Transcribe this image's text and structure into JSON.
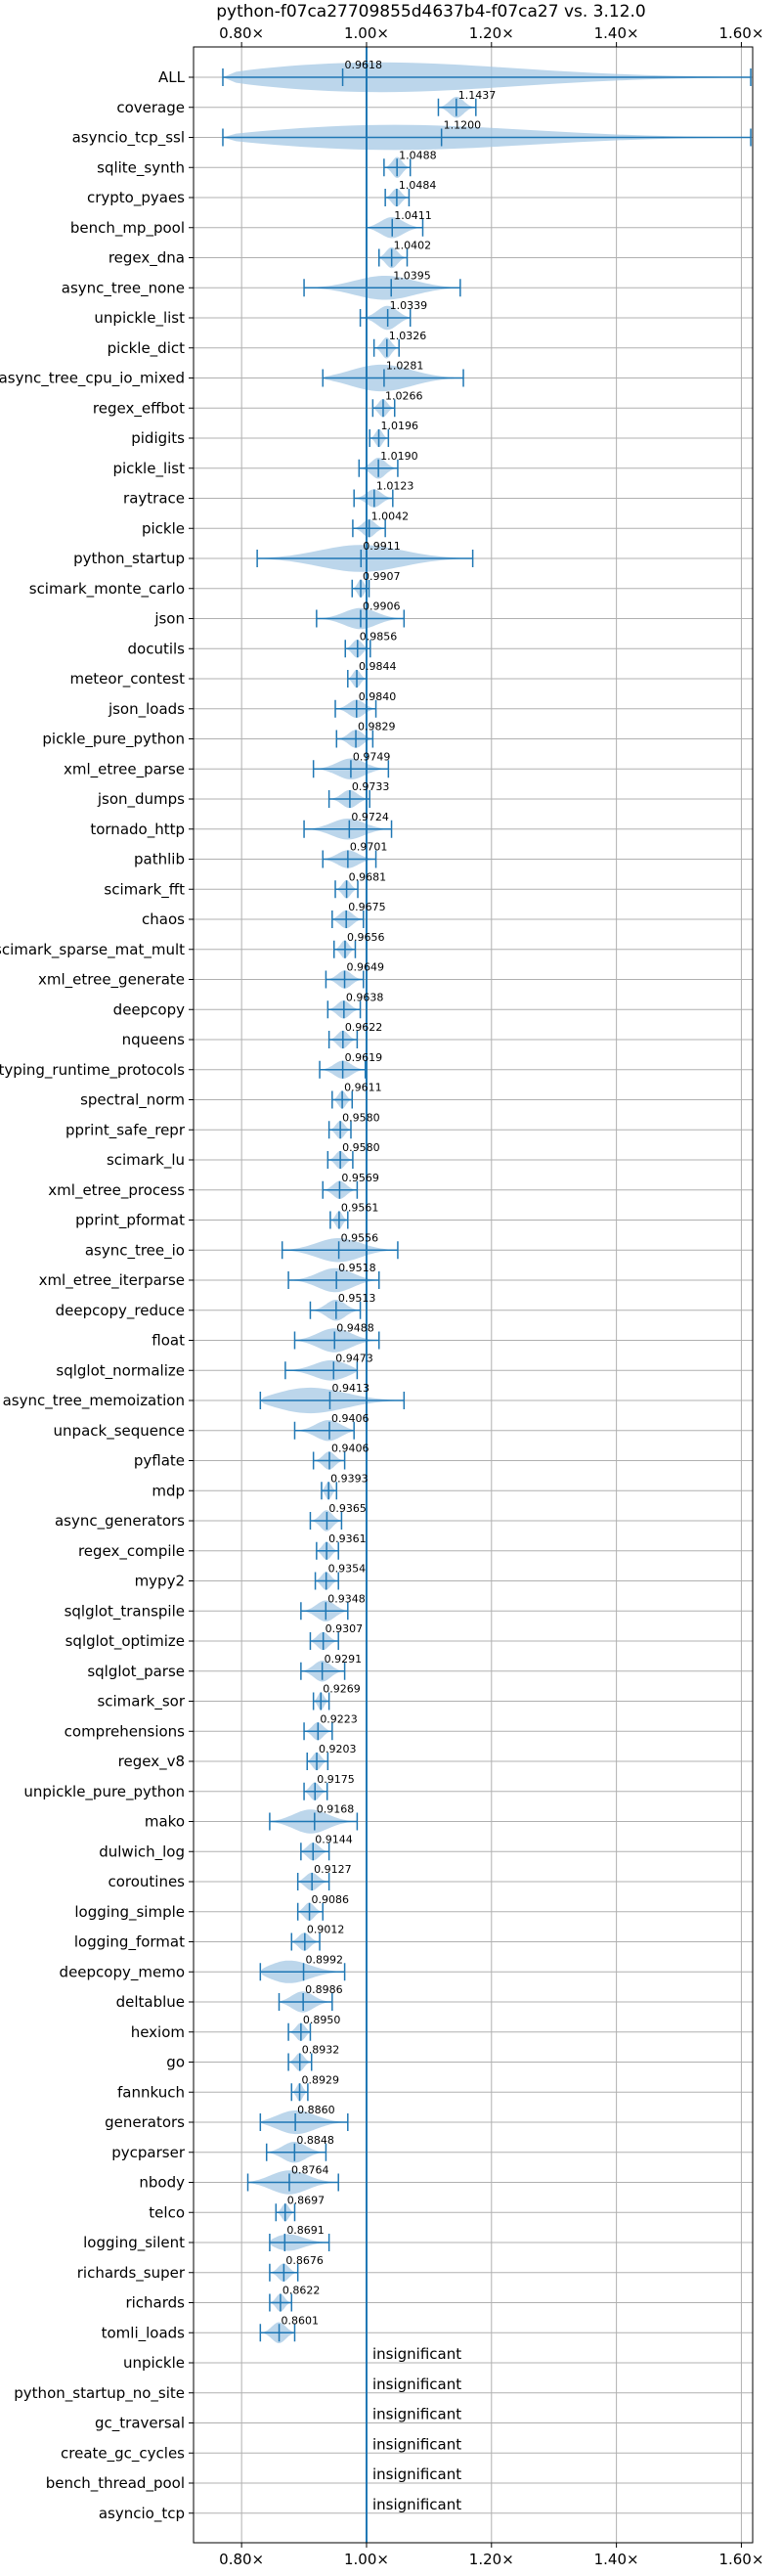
{
  "chart_data": {
    "type": "violin",
    "title": "python-f07ca27709855d4637b4-f07ca27 vs. 3.12.0",
    "xlabel": "",
    "ylabel": "",
    "xlim": [
      0.745,
      1.64
    ],
    "x_ticks": [
      {
        "value": 0.8,
        "label": "0.80×"
      },
      {
        "value": 1.0,
        "label": "1.00×"
      },
      {
        "value": 1.2,
        "label": "1.20×"
      },
      {
        "value": 1.4,
        "label": "1.40×"
      },
      {
        "value": 1.6,
        "label": "1.60×"
      }
    ],
    "reference_line": 1.0,
    "grid": true,
    "colors": {
      "violin": "#a6c8e4",
      "line": "#1f77b4",
      "grid": "#b0b0b0"
    },
    "benchmarks": [
      {
        "name": "ALL",
        "value": 0.9618,
        "label": "0.9618",
        "min": 0.77,
        "max": 1.615,
        "half_width": 0.55,
        "peak": 0.958
      },
      {
        "name": "coverage",
        "value": 1.1437,
        "label": "1.1437",
        "min": 1.115,
        "max": 1.175,
        "half_width": 0.35,
        "peak": 1.144
      },
      {
        "name": "asyncio_tcp_ssl",
        "value": 1.12,
        "label": "1.1200",
        "min": 0.77,
        "max": 1.615,
        "half_width": 0.45,
        "peak": 1.0
      },
      {
        "name": "sqlite_synth",
        "value": 1.0488,
        "label": "1.0488",
        "min": 1.028,
        "max": 1.07,
        "half_width": 0.35,
        "peak": 1.049
      },
      {
        "name": "crypto_pyaes",
        "value": 1.0484,
        "label": "1.0484",
        "min": 1.03,
        "max": 1.068,
        "half_width": 0.3,
        "peak": 1.048
      },
      {
        "name": "bench_mp_pool",
        "value": 1.0411,
        "label": "1.0411",
        "min": 1.0,
        "max": 1.09,
        "half_width": 0.35,
        "peak": 1.04
      },
      {
        "name": "regex_dna",
        "value": 1.0402,
        "label": "1.0402",
        "min": 1.02,
        "max": 1.065,
        "half_width": 0.35,
        "peak": 1.04
      },
      {
        "name": "async_tree_none",
        "value": 1.0395,
        "label": "1.0395",
        "min": 0.9,
        "max": 1.15,
        "half_width": 0.4,
        "peak": 1.03
      },
      {
        "name": "unpickle_list",
        "value": 1.0339,
        "label": "1.0339",
        "min": 0.99,
        "max": 1.07,
        "half_width": 0.4,
        "peak": 1.034
      },
      {
        "name": "pickle_dict",
        "value": 1.0326,
        "label": "1.0326",
        "min": 1.012,
        "max": 1.052,
        "half_width": 0.35,
        "peak": 1.032
      },
      {
        "name": "async_tree_cpu_io_mixed",
        "value": 1.0281,
        "label": "1.0281",
        "min": 0.93,
        "max": 1.155,
        "half_width": 0.45,
        "peak": 1.02
      },
      {
        "name": "regex_effbot",
        "value": 1.0266,
        "label": "1.0266",
        "min": 1.01,
        "max": 1.045,
        "half_width": 0.3,
        "peak": 1.026
      },
      {
        "name": "pidigits",
        "value": 1.0196,
        "label": "1.0196",
        "min": 1.005,
        "max": 1.035,
        "half_width": 0.3,
        "peak": 1.02
      },
      {
        "name": "pickle_list",
        "value": 1.019,
        "label": "1.0190",
        "min": 0.988,
        "max": 1.05,
        "half_width": 0.35,
        "peak": 1.019
      },
      {
        "name": "raytrace",
        "value": 1.0123,
        "label": "1.0123",
        "min": 0.98,
        "max": 1.042,
        "half_width": 0.3,
        "peak": 1.012
      },
      {
        "name": "pickle",
        "value": 1.0042,
        "label": "1.0042",
        "min": 0.978,
        "max": 1.03,
        "half_width": 0.3,
        "peak": 1.004
      },
      {
        "name": "python_startup",
        "value": 0.9911,
        "label": "0.9911",
        "min": 0.825,
        "max": 1.17,
        "half_width": 0.45,
        "peak": 0.99
      },
      {
        "name": "scimark_monte_carlo",
        "value": 0.9907,
        "label": "0.9907",
        "min": 0.977,
        "max": 1.004,
        "half_width": 0.3,
        "peak": 0.991
      },
      {
        "name": "json",
        "value": 0.9906,
        "label": "0.9906",
        "min": 0.92,
        "max": 1.06,
        "half_width": 0.35,
        "peak": 0.99
      },
      {
        "name": "docutils",
        "value": 0.9856,
        "label": "0.9856",
        "min": 0.966,
        "max": 1.006,
        "half_width": 0.3,
        "peak": 0.985
      },
      {
        "name": "meteor_contest",
        "value": 0.9844,
        "label": "0.9844",
        "min": 0.97,
        "max": 1.0,
        "half_width": 0.3,
        "peak": 0.984
      },
      {
        "name": "json_loads",
        "value": 0.984,
        "label": "0.9840",
        "min": 0.95,
        "max": 1.015,
        "half_width": 0.3,
        "peak": 0.984
      },
      {
        "name": "pickle_pure_python",
        "value": 0.9829,
        "label": "0.9829",
        "min": 0.952,
        "max": 1.01,
        "half_width": 0.3,
        "peak": 0.983
      },
      {
        "name": "xml_etree_parse",
        "value": 0.9749,
        "label": "0.9749",
        "min": 0.915,
        "max": 1.035,
        "half_width": 0.35,
        "peak": 0.975
      },
      {
        "name": "json_dumps",
        "value": 0.9733,
        "label": "0.9733",
        "min": 0.94,
        "max": 1.005,
        "half_width": 0.3,
        "peak": 0.973
      },
      {
        "name": "tornado_http",
        "value": 0.9724,
        "label": "0.9724",
        "min": 0.9,
        "max": 1.04,
        "half_width": 0.35,
        "peak": 0.97
      },
      {
        "name": "pathlib",
        "value": 0.9701,
        "label": "0.9701",
        "min": 0.93,
        "max": 1.015,
        "half_width": 0.3,
        "peak": 0.97
      },
      {
        "name": "scimark_fft",
        "value": 0.9681,
        "label": "0.9681",
        "min": 0.95,
        "max": 0.986,
        "half_width": 0.3,
        "peak": 0.968
      },
      {
        "name": "chaos",
        "value": 0.9675,
        "label": "0.9675",
        "min": 0.945,
        "max": 0.995,
        "half_width": 0.3,
        "peak": 0.967
      },
      {
        "name": "scimark_sparse_mat_mult",
        "value": 0.9656,
        "label": "0.9656",
        "min": 0.948,
        "max": 0.982,
        "half_width": 0.3,
        "peak": 0.965
      },
      {
        "name": "xml_etree_generate",
        "value": 0.9649,
        "label": "0.9649",
        "min": 0.935,
        "max": 0.995,
        "half_width": 0.3,
        "peak": 0.965
      },
      {
        "name": "deepcopy",
        "value": 0.9638,
        "label": "0.9638",
        "min": 0.938,
        "max": 0.99,
        "half_width": 0.3,
        "peak": 0.963
      },
      {
        "name": "nqueens",
        "value": 0.9622,
        "label": "0.9622",
        "min": 0.94,
        "max": 0.985,
        "half_width": 0.3,
        "peak": 0.962
      },
      {
        "name": "typing_runtime_protocols",
        "value": 0.9619,
        "label": "0.9619",
        "min": 0.925,
        "max": 0.998,
        "half_width": 0.3,
        "peak": 0.962
      },
      {
        "name": "spectral_norm",
        "value": 0.9611,
        "label": "0.9611",
        "min": 0.945,
        "max": 0.977,
        "half_width": 0.3,
        "peak": 0.961
      },
      {
        "name": "pprint_safe_repr",
        "value": 0.958,
        "label": "0.9580",
        "min": 0.94,
        "max": 0.975,
        "half_width": 0.3,
        "peak": 0.958
      },
      {
        "name": "scimark_lu",
        "value": 0.958,
        "label": "0.9580",
        "min": 0.938,
        "max": 0.978,
        "half_width": 0.3,
        "peak": 0.958
      },
      {
        "name": "xml_etree_process",
        "value": 0.9569,
        "label": "0.9569",
        "min": 0.93,
        "max": 0.985,
        "half_width": 0.3,
        "peak": 0.957
      },
      {
        "name": "pprint_pformat",
        "value": 0.9561,
        "label": "0.9561",
        "min": 0.942,
        "max": 0.97,
        "half_width": 0.3,
        "peak": 0.956
      },
      {
        "name": "async_tree_io",
        "value": 0.9556,
        "label": "0.9556",
        "min": 0.865,
        "max": 1.05,
        "half_width": 0.4,
        "peak": 0.955
      },
      {
        "name": "xml_etree_iterparse",
        "value": 0.9518,
        "label": "0.9518",
        "min": 0.875,
        "max": 1.02,
        "half_width": 0.4,
        "peak": 0.95
      },
      {
        "name": "deepcopy_reduce",
        "value": 0.9513,
        "label": "0.9513",
        "min": 0.91,
        "max": 0.99,
        "half_width": 0.35,
        "peak": 0.951
      },
      {
        "name": "float",
        "value": 0.9488,
        "label": "0.9488",
        "min": 0.885,
        "max": 1.02,
        "half_width": 0.4,
        "peak": 0.948
      },
      {
        "name": "sqlglot_normalize",
        "value": 0.9473,
        "label": "0.9473",
        "min": 0.87,
        "max": 0.985,
        "half_width": 0.35,
        "peak": 0.947
      },
      {
        "name": "async_tree_memoization",
        "value": 0.9413,
        "label": "0.9413",
        "min": 0.83,
        "max": 1.06,
        "half_width": 0.45,
        "peak": 0.9
      },
      {
        "name": "unpack_sequence",
        "value": 0.9406,
        "label": "0.9406",
        "min": 0.885,
        "max": 0.98,
        "half_width": 0.35,
        "peak": 0.94
      },
      {
        "name": "pyflate",
        "value": 0.9406,
        "label": "0.9406",
        "min": 0.915,
        "max": 0.965,
        "half_width": 0.3,
        "peak": 0.94
      },
      {
        "name": "mdp",
        "value": 0.9393,
        "label": "0.9393",
        "min": 0.928,
        "max": 0.952,
        "half_width": 0.3,
        "peak": 0.939
      },
      {
        "name": "async_generators",
        "value": 0.9365,
        "label": "0.9365",
        "min": 0.91,
        "max": 0.96,
        "half_width": 0.35,
        "peak": 0.936
      },
      {
        "name": "regex_compile",
        "value": 0.9361,
        "label": "0.9361",
        "min": 0.92,
        "max": 0.955,
        "half_width": 0.3,
        "peak": 0.936
      },
      {
        "name": "mypy2",
        "value": 0.9354,
        "label": "0.9354",
        "min": 0.918,
        "max": 0.955,
        "half_width": 0.3,
        "peak": 0.935
      },
      {
        "name": "sqlglot_transpile",
        "value": 0.9348,
        "label": "0.9348",
        "min": 0.895,
        "max": 0.97,
        "half_width": 0.35,
        "peak": 0.935
      },
      {
        "name": "sqlglot_optimize",
        "value": 0.9307,
        "label": "0.9307",
        "min": 0.91,
        "max": 0.955,
        "half_width": 0.3,
        "peak": 0.93
      },
      {
        "name": "sqlglot_parse",
        "value": 0.9291,
        "label": "0.9291",
        "min": 0.895,
        "max": 0.965,
        "half_width": 0.35,
        "peak": 0.929
      },
      {
        "name": "scimark_sor",
        "value": 0.9269,
        "label": "0.9269",
        "min": 0.915,
        "max": 0.94,
        "half_width": 0.3,
        "peak": 0.927
      },
      {
        "name": "comprehensions",
        "value": 0.9223,
        "label": "0.9223",
        "min": 0.9,
        "max": 0.945,
        "half_width": 0.3,
        "peak": 0.922
      },
      {
        "name": "regex_v8",
        "value": 0.9203,
        "label": "0.9203",
        "min": 0.905,
        "max": 0.938,
        "half_width": 0.3,
        "peak": 0.92
      },
      {
        "name": "unpickle_pure_python",
        "value": 0.9175,
        "label": "0.9175",
        "min": 0.9,
        "max": 0.937,
        "half_width": 0.3,
        "peak": 0.917
      },
      {
        "name": "mako",
        "value": 0.9168,
        "label": "0.9168",
        "min": 0.845,
        "max": 0.985,
        "half_width": 0.4,
        "peak": 0.91
      },
      {
        "name": "dulwich_log",
        "value": 0.9144,
        "label": "0.9144",
        "min": 0.895,
        "max": 0.94,
        "half_width": 0.3,
        "peak": 0.914
      },
      {
        "name": "coroutines",
        "value": 0.9127,
        "label": "0.9127",
        "min": 0.89,
        "max": 0.94,
        "half_width": 0.3,
        "peak": 0.912
      },
      {
        "name": "logging_simple",
        "value": 0.9086,
        "label": "0.9086",
        "min": 0.89,
        "max": 0.93,
        "half_width": 0.3,
        "peak": 0.908
      },
      {
        "name": "logging_format",
        "value": 0.9012,
        "label": "0.9012",
        "min": 0.88,
        "max": 0.925,
        "half_width": 0.3,
        "peak": 0.9
      },
      {
        "name": "deepcopy_memo",
        "value": 0.8992,
        "label": "0.8992",
        "min": 0.83,
        "max": 0.965,
        "half_width": 0.4,
        "peak": 0.87
      },
      {
        "name": "deltablue",
        "value": 0.8986,
        "label": "0.8986",
        "min": 0.86,
        "max": 0.945,
        "half_width": 0.35,
        "peak": 0.897
      },
      {
        "name": "hexiom",
        "value": 0.895,
        "label": "0.8950",
        "min": 0.875,
        "max": 0.91,
        "half_width": 0.3,
        "peak": 0.895
      },
      {
        "name": "go",
        "value": 0.8932,
        "label": "0.8932",
        "min": 0.875,
        "max": 0.912,
        "half_width": 0.3,
        "peak": 0.893
      },
      {
        "name": "fannkuch",
        "value": 0.8929,
        "label": "0.8929",
        "min": 0.88,
        "max": 0.906,
        "half_width": 0.3,
        "peak": 0.893
      },
      {
        "name": "generators",
        "value": 0.886,
        "label": "0.8860",
        "min": 0.83,
        "max": 0.97,
        "half_width": 0.4,
        "peak": 0.885
      },
      {
        "name": "pycparser",
        "value": 0.8848,
        "label": "0.8848",
        "min": 0.84,
        "max": 0.935,
        "half_width": 0.35,
        "peak": 0.884
      },
      {
        "name": "nbody",
        "value": 0.8764,
        "label": "0.8764",
        "min": 0.81,
        "max": 0.955,
        "half_width": 0.4,
        "peak": 0.875
      },
      {
        "name": "telco",
        "value": 0.8697,
        "label": "0.8697",
        "min": 0.855,
        "max": 0.885,
        "half_width": 0.3,
        "peak": 0.87
      },
      {
        "name": "logging_silent",
        "value": 0.8691,
        "label": "0.8691",
        "min": 0.845,
        "max": 0.94,
        "half_width": 0.3,
        "peak": 0.869
      },
      {
        "name": "richards_super",
        "value": 0.8676,
        "label": "0.8676",
        "min": 0.845,
        "max": 0.89,
        "half_width": 0.3,
        "peak": 0.867
      },
      {
        "name": "richards",
        "value": 0.8622,
        "label": "0.8622",
        "min": 0.845,
        "max": 0.88,
        "half_width": 0.3,
        "peak": 0.862
      },
      {
        "name": "tomli_loads",
        "value": 0.8601,
        "label": "0.8601",
        "min": 0.83,
        "max": 0.885,
        "half_width": 0.35,
        "peak": 0.86
      },
      {
        "name": "unpickle",
        "insignificant": "insignificant"
      },
      {
        "name": "python_startup_no_site",
        "insignificant": "insignificant"
      },
      {
        "name": "gc_traversal",
        "insignificant": "insignificant"
      },
      {
        "name": "create_gc_cycles",
        "insignificant": "insignificant"
      },
      {
        "name": "bench_thread_pool",
        "insignificant": "insignificant"
      },
      {
        "name": "asyncio_tcp",
        "insignificant": "insignificant"
      }
    ]
  }
}
